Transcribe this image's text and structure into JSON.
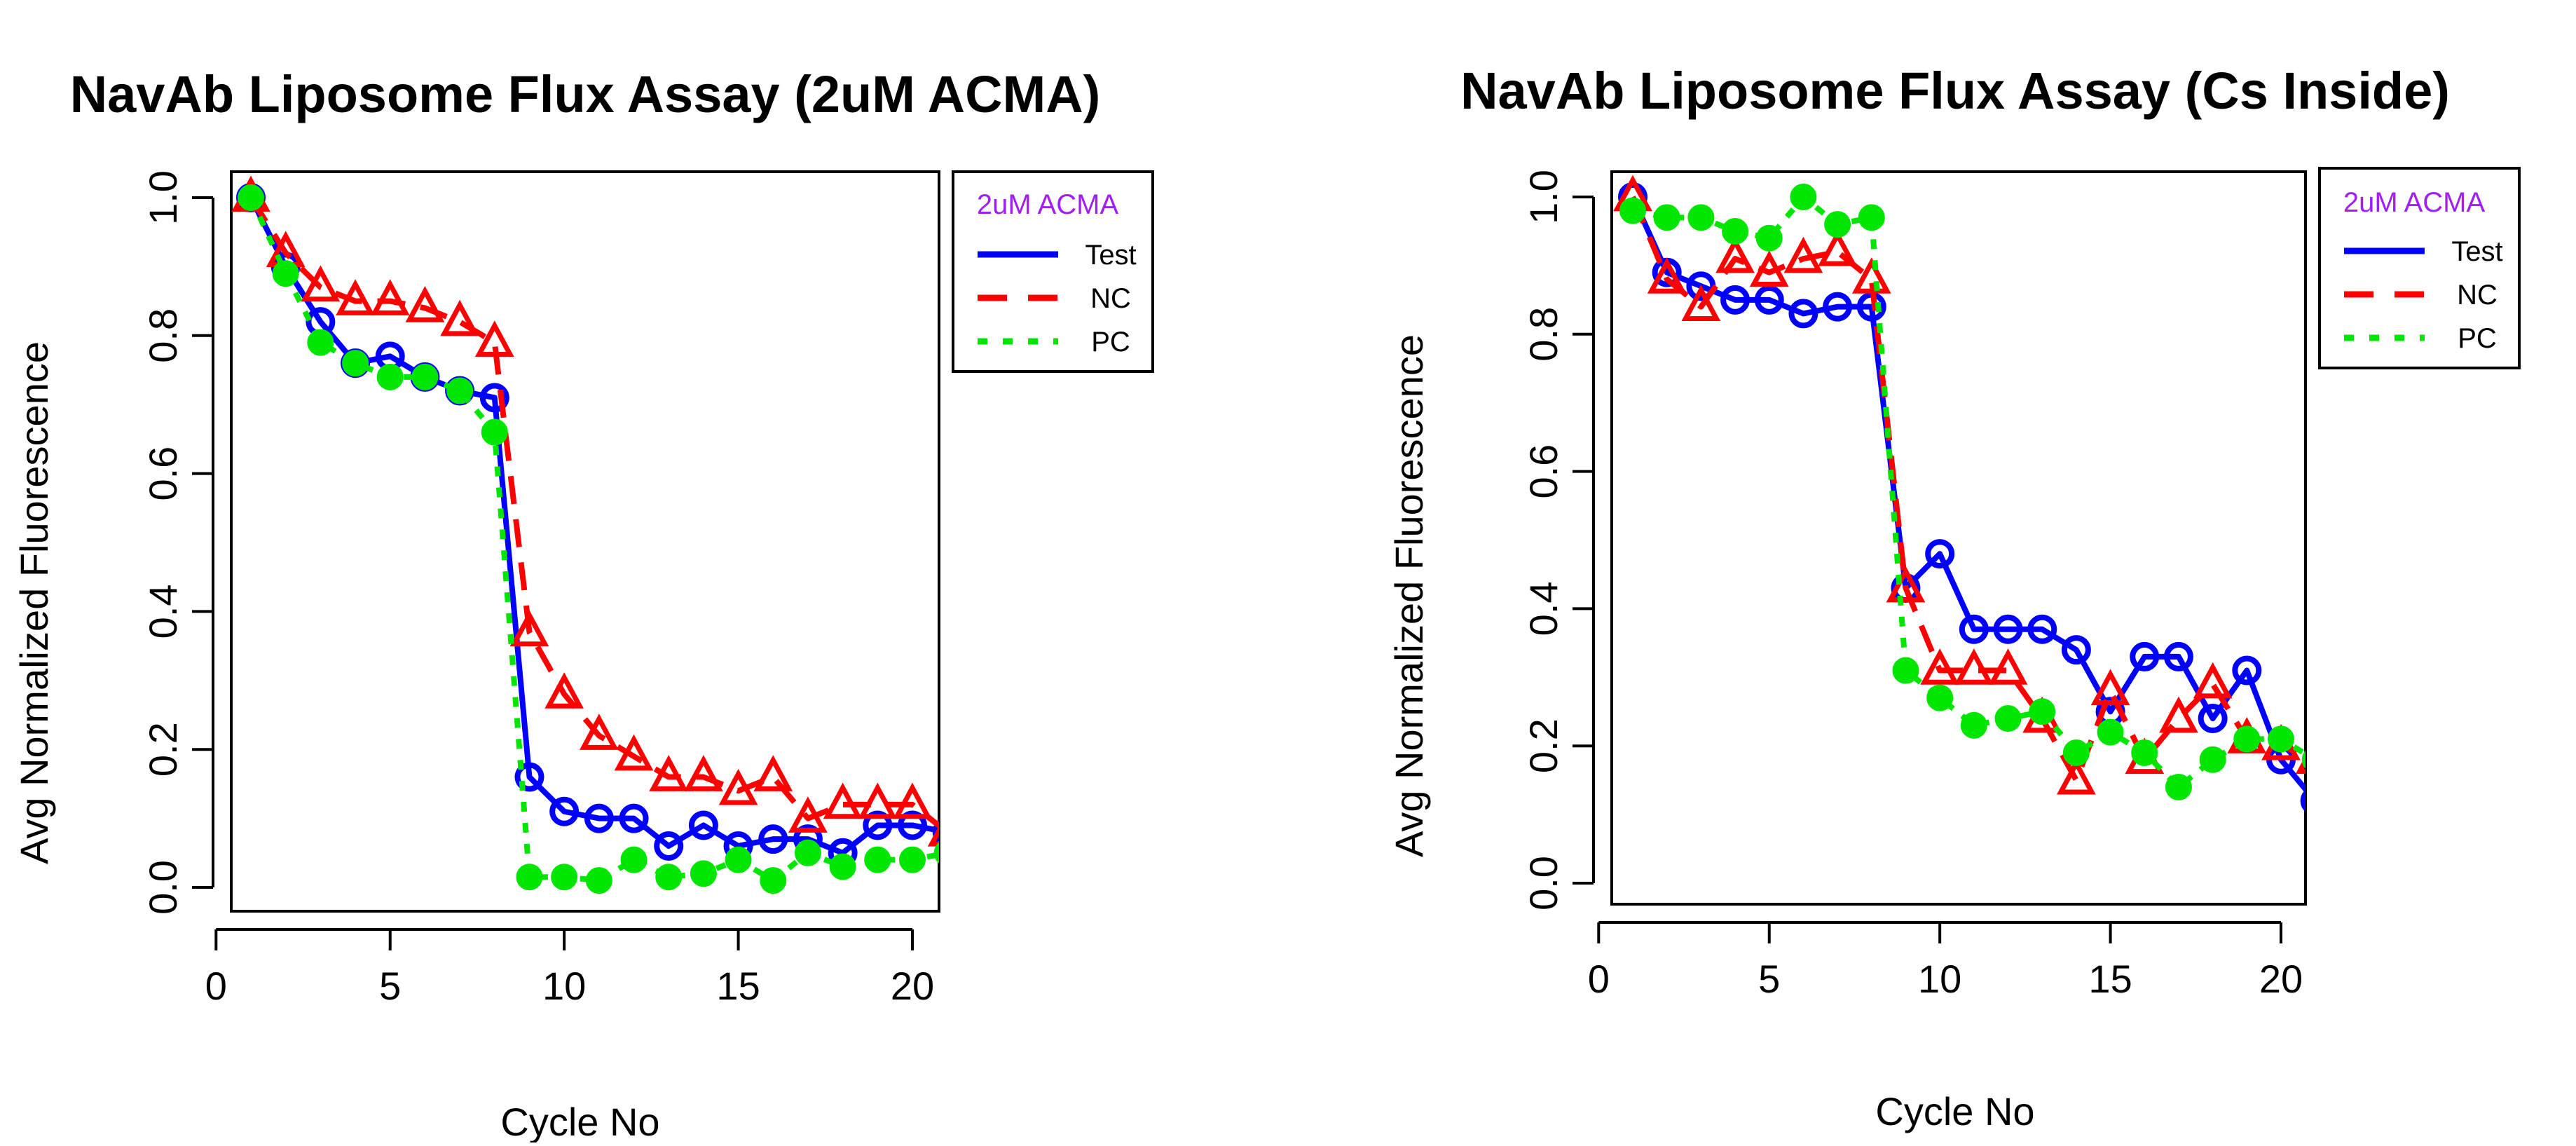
{
  "colors": {
    "Test": "#0000ff",
    "NC": "#ff0000",
    "PC": "#00e600",
    "legend_title": "#a020f0"
  },
  "chart_data": [
    {
      "type": "line",
      "title": "NavAb Liposome Flux Assay (2uM ACMA)",
      "xlabel": "Cycle No",
      "ylabel": "Avg Normalized Fluorescence",
      "xlim": [
        0,
        21
      ],
      "ylim": [
        0,
        1
      ],
      "xticks": [
        "0",
        "5",
        "10",
        "15",
        "20"
      ],
      "yticks": [
        "0.0",
        "0.2",
        "0.4",
        "0.6",
        "0.8",
        "1.0"
      ],
      "legend": {
        "title": "2uM ACMA",
        "position": "outside-right"
      },
      "grid": false,
      "x": [
        1,
        2,
        3,
        4,
        5,
        6,
        7,
        8,
        9,
        10,
        11,
        12,
        13,
        14,
        15,
        16,
        17,
        18,
        19,
        20,
        21
      ],
      "series": [
        {
          "name": "Test",
          "marker": "circle",
          "line": "solid",
          "values": [
            1.0,
            0.9,
            0.82,
            0.76,
            0.77,
            0.74,
            0.72,
            0.71,
            0.16,
            0.11,
            0.1,
            0.1,
            0.06,
            0.09,
            0.06,
            0.07,
            0.07,
            0.05,
            0.09,
            0.09,
            0.08
          ]
        },
        {
          "name": "NC",
          "marker": "triangle",
          "line": "dashed",
          "values": [
            1.0,
            0.92,
            0.87,
            0.85,
            0.85,
            0.84,
            0.82,
            0.79,
            0.37,
            0.28,
            0.22,
            0.19,
            0.16,
            0.16,
            0.14,
            0.16,
            0.1,
            0.12,
            0.12,
            0.12,
            0.08
          ]
        },
        {
          "name": "PC",
          "marker": "filled-circle",
          "line": "dotted",
          "values": [
            1.0,
            0.89,
            0.79,
            0.76,
            0.74,
            0.74,
            0.72,
            0.66,
            0.015,
            0.015,
            0.01,
            0.04,
            0.015,
            0.02,
            0.04,
            0.01,
            0.05,
            0.03,
            0.04,
            0.04,
            0.05
          ]
        }
      ]
    },
    {
      "type": "line",
      "title": "NavAb Liposome Flux Assay (Cs Inside)",
      "xlabel": "Cycle No",
      "ylabel": "Avg Normalized Fluorescence",
      "xlim": [
        0,
        21
      ],
      "ylim": [
        0,
        1
      ],
      "xticks": [
        "0",
        "5",
        "10",
        "15",
        "20"
      ],
      "yticks": [
        "0.0",
        "0.2",
        "0.4",
        "0.6",
        "0.8",
        "1.0"
      ],
      "legend": {
        "title": "2uM ACMA",
        "position": "outside-right"
      },
      "grid": false,
      "x": [
        1,
        2,
        3,
        4,
        5,
        6,
        7,
        8,
        9,
        10,
        11,
        12,
        13,
        14,
        15,
        16,
        17,
        18,
        19,
        20,
        21
      ],
      "series": [
        {
          "name": "Test",
          "marker": "circle",
          "line": "solid",
          "values": [
            1.0,
            0.89,
            0.87,
            0.85,
            0.85,
            0.83,
            0.84,
            0.84,
            0.43,
            0.48,
            0.37,
            0.37,
            0.37,
            0.34,
            0.25,
            0.33,
            0.33,
            0.24,
            0.31,
            0.18,
            0.12
          ]
        },
        {
          "name": "NC",
          "marker": "triangle",
          "line": "dashed",
          "values": [
            1.0,
            0.88,
            0.84,
            0.91,
            0.89,
            0.91,
            0.92,
            0.88,
            0.43,
            0.31,
            0.31,
            0.31,
            0.24,
            0.15,
            0.28,
            0.18,
            0.24,
            0.29,
            0.21,
            0.2,
            0.18
          ]
        },
        {
          "name": "PC",
          "marker": "filled-circle",
          "line": "dotted",
          "values": [
            0.98,
            0.97,
            0.97,
            0.95,
            0.94,
            1.0,
            0.96,
            0.97,
            0.31,
            0.27,
            0.23,
            0.24,
            0.25,
            0.19,
            0.22,
            0.19,
            0.14,
            0.18,
            0.21,
            0.21,
            0.18
          ]
        }
      ]
    }
  ]
}
